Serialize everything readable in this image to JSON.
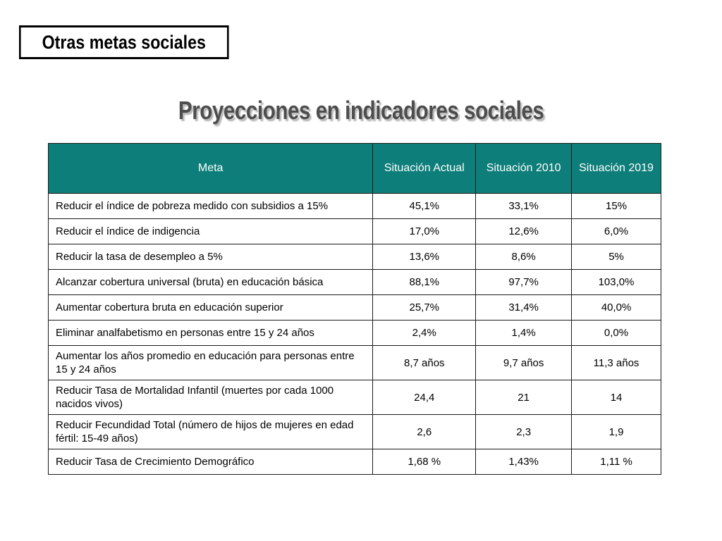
{
  "section_label": "Otras metas sociales",
  "title": "Proyecciones en indicadores sociales",
  "table": {
    "headers": {
      "meta": "Meta",
      "actual": "Situación Actual",
      "y2010": "Situación 2010",
      "y2019": "Situación 2019"
    },
    "rows": [
      {
        "meta": "Reducir el índice de pobreza medido con subsidios a 15%",
        "actual": "45,1%",
        "y2010": "33,1%",
        "y2019": "15%"
      },
      {
        "meta": "Reducir el índice de indigencia",
        "actual": "17,0%",
        "y2010": "12,6%",
        "y2019": "6,0%"
      },
      {
        "meta": "Reducir la tasa de desempleo a 5%",
        "actual": "13,6%",
        "y2010": "8,6%",
        "y2019": "5%"
      },
      {
        "meta": "Alcanzar cobertura universal (bruta) en educación básica",
        "actual": "88,1%",
        "y2010": "97,7%",
        "y2019": "103,0%"
      },
      {
        "meta": "Aumentar cobertura bruta en educación superior",
        "actual": "25,7%",
        "y2010": "31,4%",
        "y2019": "40,0%"
      },
      {
        "meta": "Eliminar analfabetismo en personas entre 15 y 24 años",
        "actual": "2,4%",
        "y2010": "1,4%",
        "y2019": "0,0%"
      },
      {
        "meta": "Aumentar los años promedio en educación para personas entre 15 y 24 años",
        "actual": "8,7 años",
        "y2010": "9,7 años",
        "y2019": "11,3 años"
      },
      {
        "meta": "Reducir Tasa de Mortalidad Infantil (muertes por cada 1000 nacidos vivos)",
        "actual": "24,4",
        "y2010": "21",
        "y2019": "14"
      },
      {
        "meta": "Reducir Fecundidad Total (número de hijos de mujeres en edad fértil: 15-49 años)",
        "actual": "2,6",
        "y2010": "2,3",
        "y2019": "1,9"
      },
      {
        "meta": "Reducir Tasa de Crecimiento Demográfico",
        "actual": "1,68 %",
        "y2010": "1,43%",
        "y2019": "1,11 %"
      }
    ]
  },
  "colors": {
    "header_background": "#0e7e7a",
    "header_text": "#ffffff",
    "title_text": "#4d4d4d"
  }
}
